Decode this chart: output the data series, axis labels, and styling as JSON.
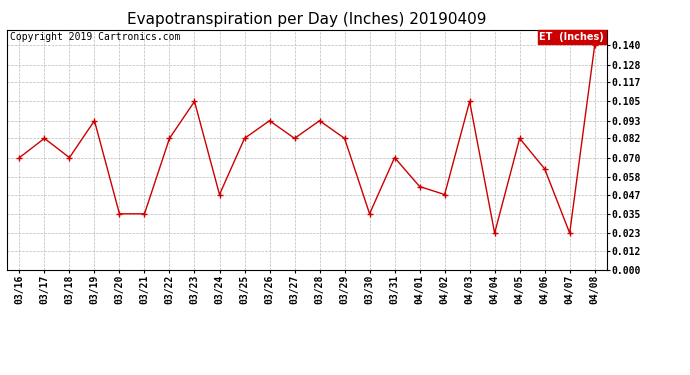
{
  "title": "Evapotranspiration per Day (Inches) 20190409",
  "copyright": "Copyright 2019 Cartronics.com",
  "legend_label": "ET  (Inches)",
  "x_labels": [
    "03/16",
    "03/17",
    "03/18",
    "03/19",
    "03/20",
    "03/21",
    "03/22",
    "03/23",
    "03/24",
    "03/25",
    "03/26",
    "03/27",
    "03/28",
    "03/29",
    "03/30",
    "03/31",
    "04/01",
    "04/02",
    "04/03",
    "04/04",
    "04/05",
    "04/06",
    "04/07",
    "04/08"
  ],
  "y_values": [
    0.07,
    0.082,
    0.07,
    0.093,
    0.035,
    0.035,
    0.082,
    0.105,
    0.047,
    0.082,
    0.093,
    0.082,
    0.093,
    0.082,
    0.035,
    0.07,
    0.052,
    0.047,
    0.105,
    0.023,
    0.082,
    0.063,
    0.023,
    0.14
  ],
  "ylim": [
    0.0,
    0.1495
  ],
  "yticks": [
    0.0,
    0.012,
    0.023,
    0.035,
    0.047,
    0.058,
    0.07,
    0.082,
    0.093,
    0.105,
    0.117,
    0.128,
    0.14
  ],
  "line_color": "#cc0000",
  "marker": "+",
  "marker_color": "#cc0000",
  "bg_color": "#ffffff",
  "grid_color": "#bbbbbb",
  "title_fontsize": 11,
  "tick_fontsize": 7,
  "copyright_fontsize": 7,
  "legend_bg": "#cc0000",
  "legend_text_color": "#ffffff",
  "legend_fontsize": 7
}
